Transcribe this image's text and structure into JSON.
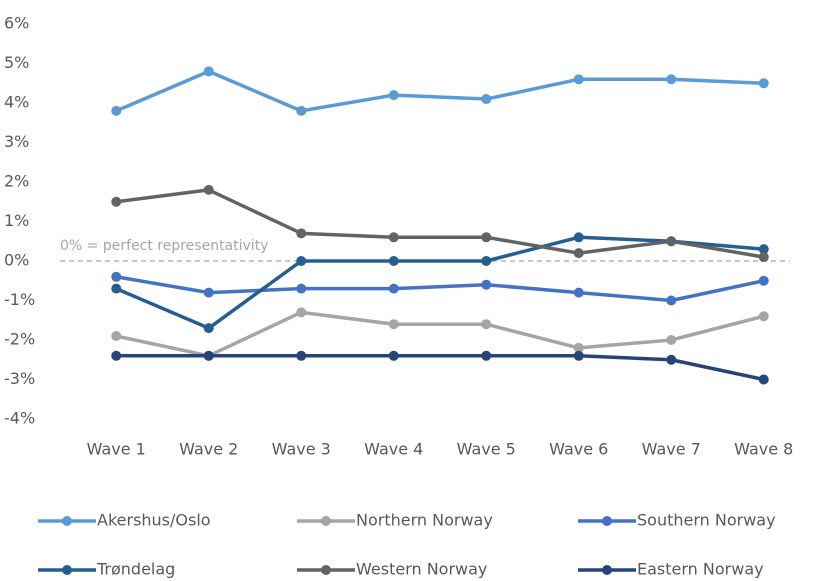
{
  "chart_data": {
    "type": "line",
    "categories": [
      "Wave 1",
      "Wave 2",
      "Wave 3",
      "Wave 4",
      "Wave 5",
      "Wave 6",
      "Wave 7",
      "Wave 8"
    ],
    "series": [
      {
        "name": "Akershus/Oslo",
        "color": "#5b9bd5",
        "values": [
          3.8,
          4.8,
          3.8,
          4.2,
          4.1,
          4.6,
          4.6,
          4.5
        ]
      },
      {
        "name": "Northern Norway",
        "color": "#a5a5a5",
        "values": [
          -1.9,
          -2.4,
          -1.3,
          -1.6,
          -1.6,
          -2.2,
          -2.0,
          -1.4
        ]
      },
      {
        "name": "Southern Norway",
        "color": "#4472c4",
        "values": [
          -0.4,
          -0.8,
          -0.7,
          -0.7,
          -0.6,
          -0.8,
          -1.0,
          -0.5
        ]
      },
      {
        "name": "Trøndelag",
        "color": "#255e91",
        "values": [
          -0.7,
          -1.7,
          0,
          0,
          0,
          0.6,
          0.5,
          0.3
        ]
      },
      {
        "name": "Western Norway",
        "color": "#636363",
        "values": [
          1.5,
          1.8,
          0.7,
          0.6,
          0.6,
          0.2,
          0.5,
          0.1
        ]
      },
      {
        "name": "Eastern Norway",
        "color": "#264478",
        "values": [
          -2.4,
          -2.4,
          -2.4,
          -2.4,
          -2.4,
          -2.4,
          -2.5,
          -3.0
        ]
      }
    ],
    "ylim": [
      -4,
      6
    ],
    "yticks": [
      {
        "value": -4,
        "label": "-4%"
      },
      {
        "value": -3,
        "label": "-3%"
      },
      {
        "value": -2,
        "label": "-2%"
      },
      {
        "value": -1,
        "label": "-1%"
      },
      {
        "value": 0,
        "label": "0%"
      },
      {
        "value": 1,
        "label": "1%"
      },
      {
        "value": 2,
        "label": "2%"
      },
      {
        "value": 3,
        "label": "3%"
      },
      {
        "value": 4,
        "label": "4%"
      },
      {
        "value": 5,
        "label": "5%"
      },
      {
        "value": 6,
        "label": "6%"
      }
    ],
    "annotations": [
      {
        "text": "0% = perfect representativity",
        "y": 0
      }
    ],
    "grid": false,
    "legend": "bottom"
  }
}
